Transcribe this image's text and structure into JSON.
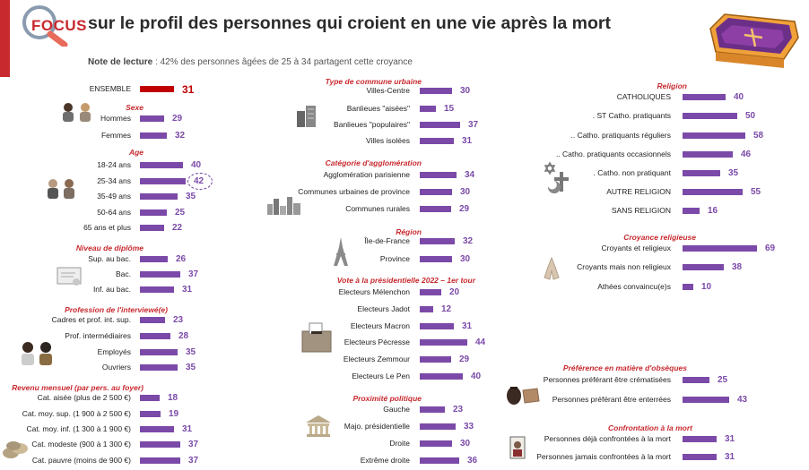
{
  "header": {
    "focus_word": "FOCUS",
    "title": "sur le profil des personnes qui croient en une vie après la mort",
    "note_label": "Note de lecture",
    "note_text": " : 42% des personnes âgées de 25 à 34 partagent cette croyance"
  },
  "colors": {
    "accent": "#c8292f",
    "bar": "#7b4aa8",
    "highlight_bar": "#c00000"
  },
  "icons": [
    "magnifier-icon",
    "coffin-icon",
    "women-icon",
    "age-people-icon",
    "diploma-icon",
    "workers-icon",
    "coins-icon",
    "buildings-icon",
    "city-skyline-icon",
    "eiffel-tower-icon",
    "ballot-box-icon",
    "government-building-icon",
    "religion-symbols-icon",
    "praying-hands-icon",
    "urn-and-coffin-icon",
    "portrait-icon"
  ],
  "chart_data": {
    "type": "bar",
    "highlight": {
      "group": "Âge",
      "label": "25-34 ans",
      "value": 42
    },
    "groups": [
      {
        "title": "",
        "labels": [
          "ENSEMBLE"
        ],
        "values": [
          31
        ]
      },
      {
        "title": "Sexe",
        "labels": [
          "Hommes",
          "Femmes"
        ],
        "values": [
          29,
          32
        ]
      },
      {
        "title": "Age",
        "labels": [
          "18-24 ans",
          "25-34 ans",
          "35-49 ans",
          "50-64 ans",
          "65 ans et plus"
        ],
        "values": [
          40,
          42,
          35,
          25,
          22
        ]
      },
      {
        "title": "Niveau de diplôme",
        "labels": [
          "Sup. au bac.",
          "Bac.",
          "Inf. au bac."
        ],
        "values": [
          26,
          37,
          31
        ]
      },
      {
        "title": "Profession de l'interviewé(e)",
        "labels": [
          "Cadres et prof. int. sup.",
          "Prof. intermédiaires",
          "Employés",
          "Ouvriers"
        ],
        "values": [
          23,
          28,
          35,
          35
        ]
      },
      {
        "title": "Revenu mensuel (par pers. au foyer)",
        "labels": [
          "Cat. aisée (plus de 2 500 €)",
          "Cat. moy. sup. (1 900 à 2 500 €)",
          "Cat. moy. inf. (1 300 à 1 900 €)",
          "Cat. modeste (900 à 1 300 €)",
          "Cat. pauvre (moins de 900 €)"
        ],
        "values": [
          18,
          19,
          31,
          37,
          37
        ]
      },
      {
        "title": "Type de commune urbaine",
        "labels": [
          "Villes-Centre",
          "Banlieues \"aisées\"",
          "Banlieues \"populaires\"",
          "Villes isolées"
        ],
        "values": [
          30,
          15,
          37,
          31
        ]
      },
      {
        "title": "Catégorie d'agglomération",
        "labels": [
          "Agglomération parisienne",
          "Communes urbaines de province",
          "Communes rurales"
        ],
        "values": [
          34,
          30,
          29
        ]
      },
      {
        "title": "Région",
        "labels": [
          "Île-de-France",
          "Province"
        ],
        "values": [
          32,
          30
        ]
      },
      {
        "title": "Vote à la présidentielle 2022 – 1er tour",
        "labels": [
          "Electeurs Mélenchon",
          "Electeurs Jadot",
          "Electeurs Macron",
          "Electeurs Pécresse",
          "Electeurs Zemmour",
          "Electeurs Le Pen"
        ],
        "values": [
          20,
          12,
          31,
          44,
          29,
          40
        ]
      },
      {
        "title": "Proximité politique",
        "labels": [
          "Gauche",
          "Majo. présidentielle",
          "Droite",
          "Extrême droite"
        ],
        "values": [
          23,
          33,
          30,
          36
        ]
      },
      {
        "title": "Religion",
        "labels": [
          "CATHOLIQUES",
          ". ST Catho. pratiquants",
          ".. Catho. pratiquants réguliers",
          ".. Catho. pratiquants occasionnels",
          ". Catho. non pratiquant",
          "AUTRE RELIGION",
          "SANS RELIGION"
        ],
        "values": [
          40,
          50,
          58,
          46,
          35,
          55,
          16
        ]
      },
      {
        "title": "Croyance religieuse",
        "labels": [
          "Croyants et religieux",
          "Croyants mais non religieux",
          "Athées convaincu(e)s"
        ],
        "values": [
          69,
          38,
          10
        ]
      },
      {
        "title": "Préférence en matière d'obsèques",
        "labels": [
          "Personnes préférant être crématisées",
          "Personnes préférant être enterrées"
        ],
        "values": [
          25,
          43
        ]
      },
      {
        "title": "Confrontation à la mort",
        "labels": [
          "Personnes déjà confrontées à la mort",
          "Personnes jamais confrontées à la mort"
        ],
        "values": [
          31,
          31
        ]
      }
    ]
  }
}
